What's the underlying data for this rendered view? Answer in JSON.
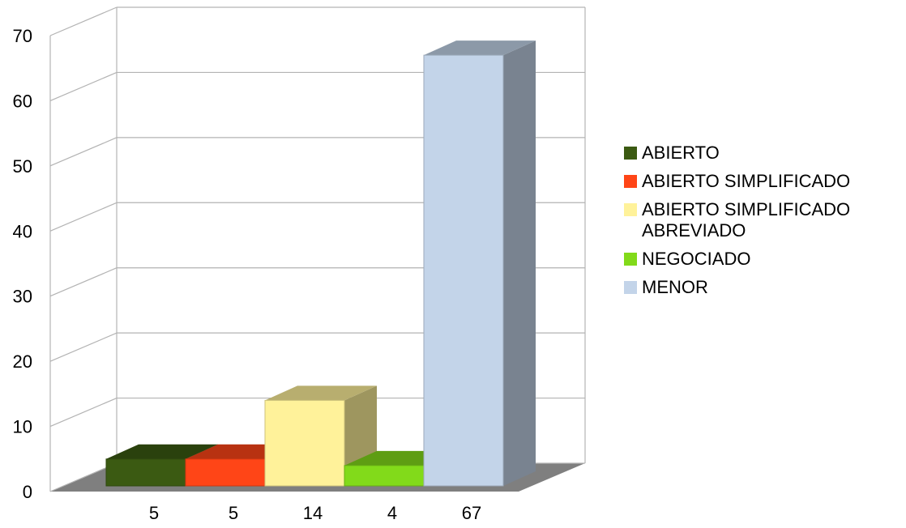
{
  "chart_data": {
    "type": "bar",
    "categories": [
      "5",
      "5",
      "14",
      "4",
      "67"
    ],
    "series": [
      {
        "name": "ABIERTO",
        "values": [
          5,
          null,
          null,
          null,
          null
        ],
        "color": "#3b5a12"
      },
      {
        "name": "ABIERTO SIMPLIFICADO",
        "values": [
          null,
          5,
          null,
          null,
          null
        ],
        "color": "#ff4517"
      },
      {
        "name": "ABIERTO SIMPLIFICADO\nABREVIADO",
        "values": [
          null,
          null,
          14,
          null,
          null
        ],
        "color": "#fff29a"
      },
      {
        "name": "NEGOCIADO",
        "values": [
          null,
          null,
          null,
          4,
          null
        ],
        "color": "#82da1a"
      },
      {
        "name": "MENOR",
        "values": [
          null,
          null,
          null,
          null,
          67
        ],
        "color": "#c3d4e9"
      }
    ],
    "ylim": [
      0,
      70
    ],
    "yticks": [
      "0",
      "10",
      "20",
      "30",
      "40",
      "50",
      "60",
      "70"
    ],
    "grid": true,
    "legend_position": "right",
    "three_d": true
  }
}
